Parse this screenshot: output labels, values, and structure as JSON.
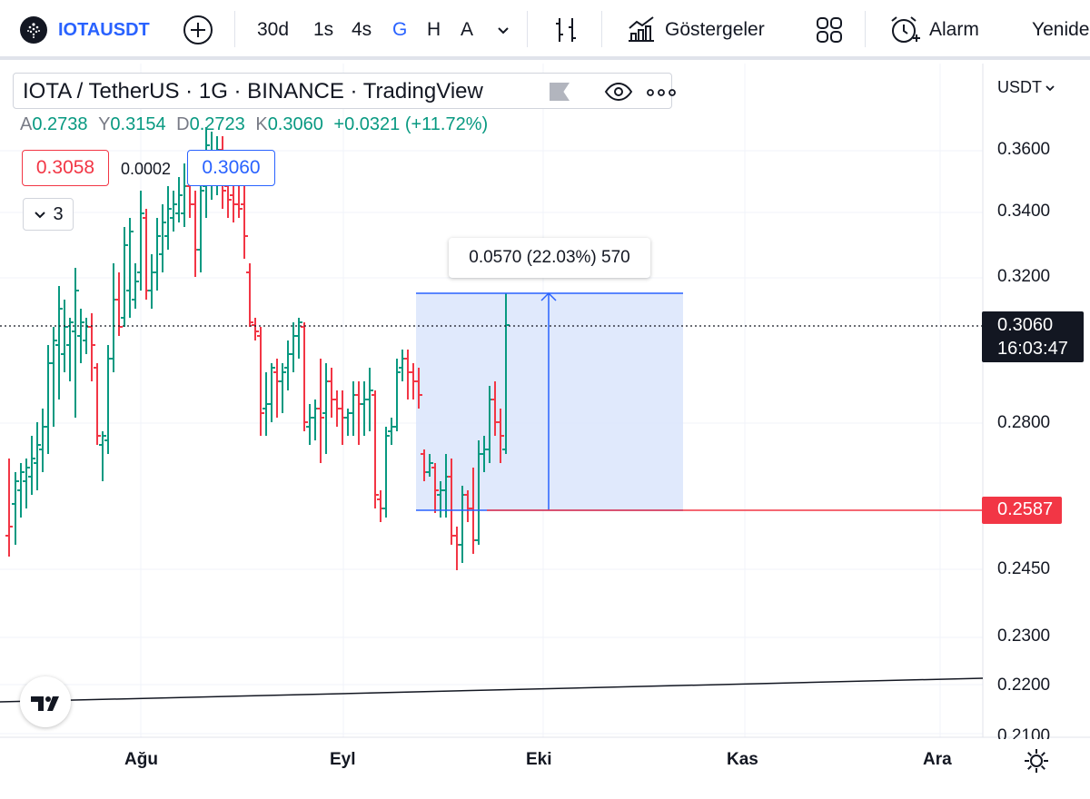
{
  "toolbar": {
    "symbol": "IOTAUSDT",
    "intervals": [
      "30d",
      "1s",
      "4s",
      "G",
      "H",
      "A"
    ],
    "active_interval": "G",
    "indicators_label": "Göstergeler",
    "alarm_label": "Alarm",
    "replay_label": "Yeniden oynat"
  },
  "legend": {
    "title": "IOTA / TetherUS · 1G · BINANCE · TradingView",
    "o_label": "A",
    "o_value": "0.2738",
    "h_label": "Y",
    "h_value": "0.3154",
    "l_label": "D",
    "l_value": "0.2723",
    "c_label": "K",
    "c_value": "0.3060",
    "change": "+0.0321 (+11.72%)",
    "bid": "0.3058",
    "spread": "0.0002",
    "ask": "0.3060",
    "collapse_count": "3"
  },
  "measure": {
    "label": "0.0570 (22.03%) 570"
  },
  "price_axis": {
    "currency": "USDT",
    "ticks": [
      "0.3600",
      "0.3400",
      "0.3200",
      "0.2800",
      "0.2450",
      "0.2300",
      "0.2200",
      "0.2100"
    ],
    "current_price": "0.3060",
    "countdown": "16:03:47",
    "hline_price": "0.2587"
  },
  "time_axis": {
    "ticks": [
      "Ağu",
      "Eyl",
      "Eki",
      "Kas",
      "Ara"
    ]
  },
  "colors": {
    "up": "#089981",
    "down": "#f23645",
    "accent": "#2962ff",
    "measure_fill": "#dbe5fb"
  }
}
